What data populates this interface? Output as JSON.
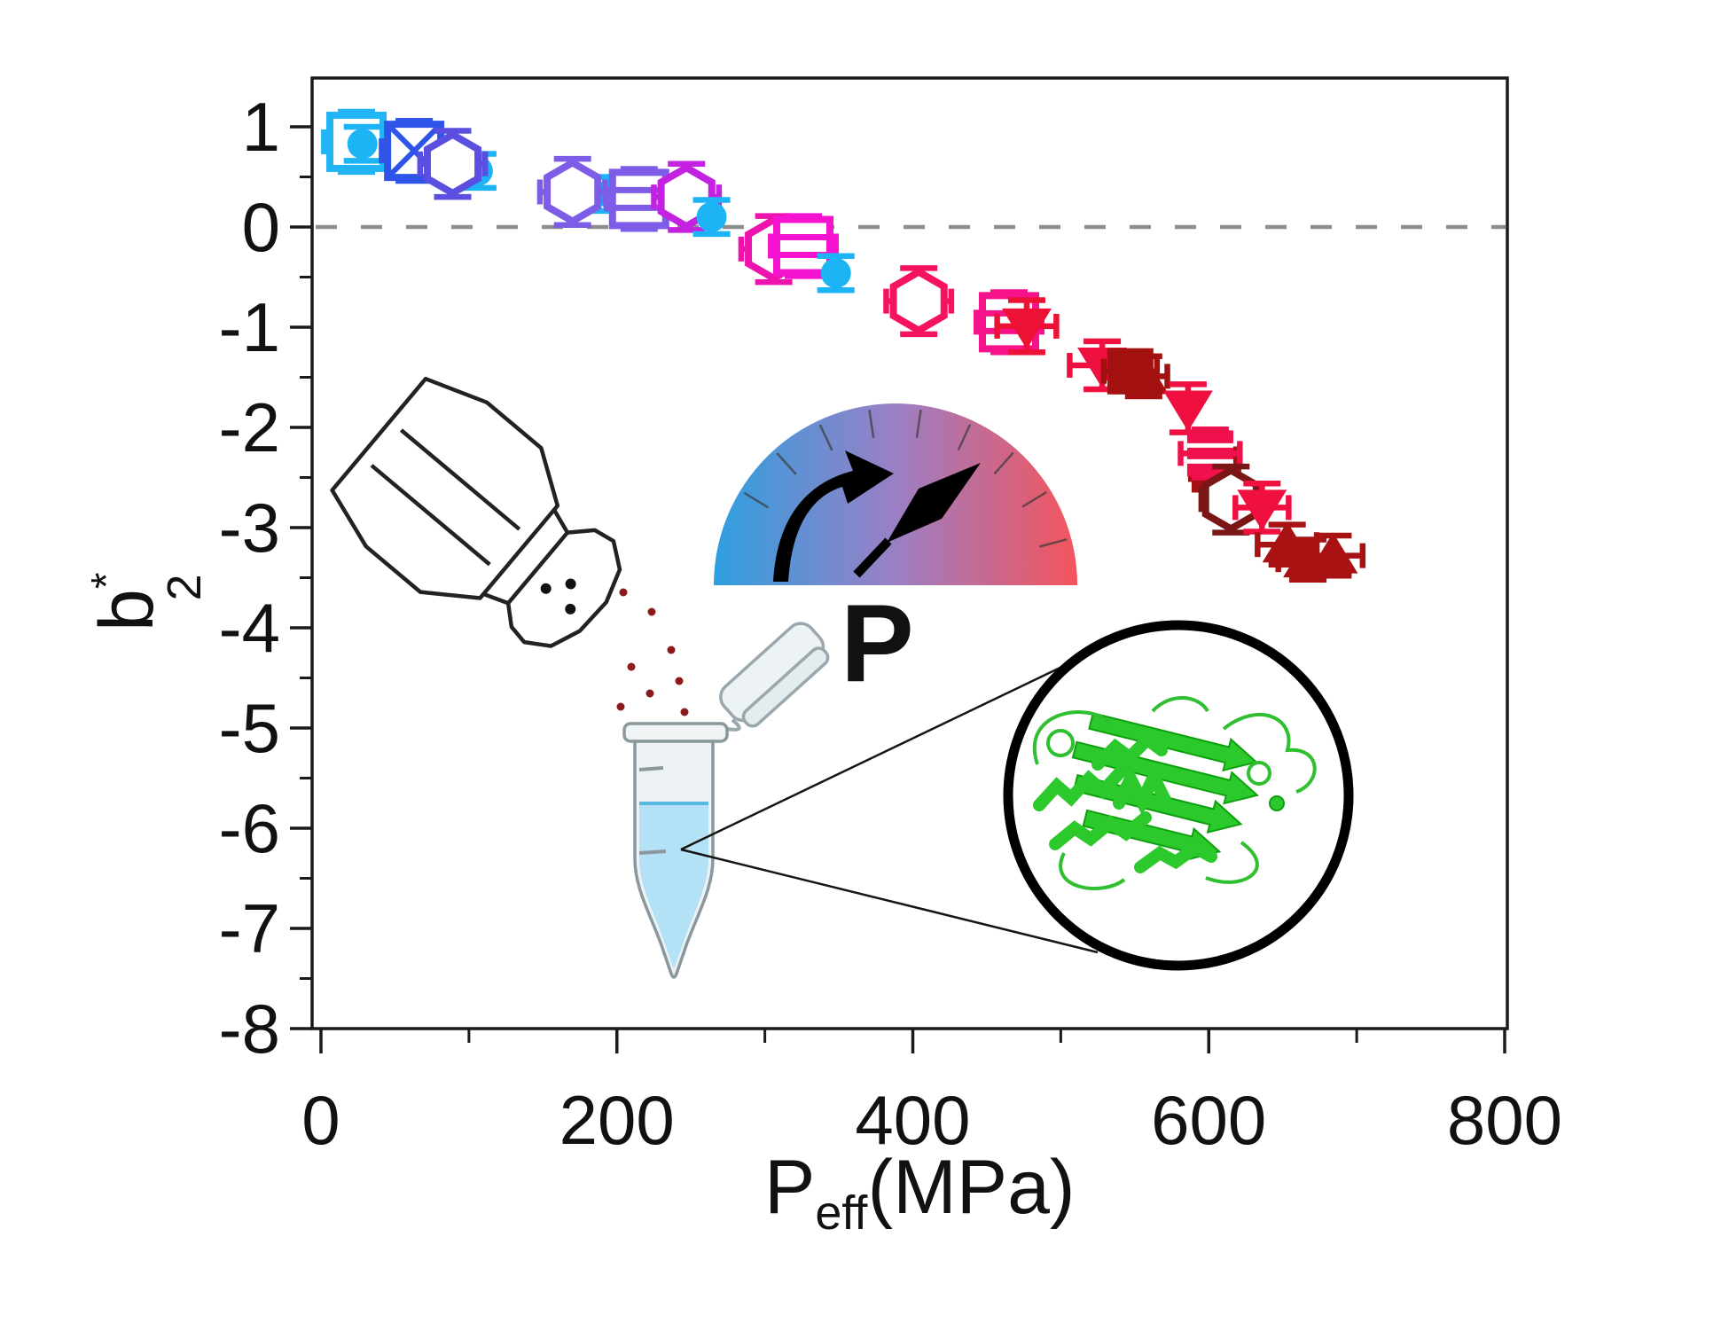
{
  "figure": {
    "gauge": {
      "label": "P"
    },
    "x_axis": {
      "title_main": "P",
      "title_sub": "eff",
      "title_unit": "(MPa)",
      "tick_labels": [
        "0",
        "200",
        "400",
        "600",
        "800"
      ],
      "tick_values": [
        0,
        200,
        400,
        600,
        800
      ],
      "minor_tick_values": [
        100,
        300,
        500,
        700
      ]
    },
    "y_axis": {
      "title_main": "b",
      "title_sup": "*",
      "title_sub": "2",
      "tick_labels": [
        "1",
        "0",
        "-1",
        "-2",
        "-3",
        "-4",
        "-5",
        "-6",
        "-7",
        "-8"
      ],
      "tick_values": [
        1,
        0,
        -1,
        -2,
        -3,
        -4,
        -5,
        -6,
        -7,
        -8
      ],
      "minor_tick_values": [
        0.5,
        -0.5,
        -1.5,
        -2.5,
        -3.5,
        -4.5,
        -5.5,
        -6.5,
        -7.5
      ]
    },
    "colors": {
      "frame": "#1a1a1a",
      "dashed_line": "#8c8c8c",
      "gauge_gradient": [
        "#2e9fe0",
        "#9b7fc4",
        "#f4545c"
      ],
      "protein_green": "#2bc92b",
      "liquid_blue": "#b3e1f5",
      "salt_dots": "#8b1a1a"
    }
  },
  "chart_data": {
    "type": "scatter",
    "title": "",
    "xlabel": "P_eff (MPa)",
    "ylabel": "b_2*",
    "xlim": [
      0,
      800
    ],
    "ylim": [
      -8,
      1.5
    ],
    "grid": false,
    "zero_line_y": 0,
    "marker_note": "marker color encodes pressure from blue (low) to dark red (high); cyan filled circles, open/striped squares, open hexagons, filled triangles",
    "points": [
      {
        "x": 24,
        "y": 0.85,
        "marker": "square-open",
        "color": "#22b4f5",
        "xerr": 22,
        "yerr": 0.3
      },
      {
        "x": 28,
        "y": 0.83,
        "marker": "circle",
        "color": "#1cb4f4",
        "yerr": 0.17
      },
      {
        "x": 63,
        "y": 0.76,
        "marker": "square-crossed",
        "color": "#2f55e8",
        "xerr": 22,
        "yerr": 0.3
      },
      {
        "x": 106,
        "y": 0.56,
        "marker": "circle",
        "color": "#1cb4f4",
        "yerr": 0.17
      },
      {
        "x": 89,
        "y": 0.63,
        "marker": "hexagon",
        "color": "#5a4fe0",
        "xerr": 22,
        "yerr": 0.33
      },
      {
        "x": 196,
        "y": 0.33,
        "marker": "circle",
        "color": "#1cb4f4",
        "yerr": 0.17
      },
      {
        "x": 170,
        "y": 0.35,
        "marker": "hexagon",
        "color": "#7d5ce8",
        "xerr": 22,
        "yerr": 0.33
      },
      {
        "x": 215,
        "y": 0.28,
        "marker": "square-striped",
        "color": "#7d5ce8",
        "xerr": 22,
        "yerr": 0.3
      },
      {
        "x": 247,
        "y": 0.3,
        "marker": "hexagon",
        "color": "#c322e0",
        "xerr": 22,
        "yerr": 0.33
      },
      {
        "x": 264,
        "y": 0.1,
        "marker": "circle",
        "color": "#1cb4f4",
        "yerr": 0.17
      },
      {
        "x": 306,
        "y": -0.22,
        "marker": "hexagon",
        "color": "#ef13ae",
        "xerr": 22,
        "yerr": 0.33
      },
      {
        "x": 326,
        "y": -0.19,
        "marker": "square-striped",
        "color": "#f513d0",
        "xerr": 22,
        "yerr": 0.3
      },
      {
        "x": 348,
        "y": -0.46,
        "marker": "circle",
        "color": "#1cb4f4",
        "yerr": 0.17
      },
      {
        "x": 404,
        "y": -0.74,
        "marker": "hexagon",
        "color": "#f5135f",
        "xerr": 22,
        "yerr": 0.33
      },
      {
        "x": 465,
        "y": -0.95,
        "marker": "square-striped",
        "color": "#f6128b",
        "xerr": 22,
        "yerr": 0.3
      },
      {
        "x": 477,
        "y": -0.99,
        "marker": "triangle-down",
        "color": "#ee1136",
        "xerr": 20,
        "yerr": 0.26
      },
      {
        "x": 528,
        "y": -1.38,
        "marker": "triangle-down",
        "color": "#f01040",
        "xerr": 22,
        "yerr": 0.24
      },
      {
        "x": 547,
        "y": -1.44,
        "marker": "square-filled",
        "color": "#a31111",
        "xerr": 18,
        "yerr": 0.2
      },
      {
        "x": 556,
        "y": -1.49,
        "marker": "triangle-up",
        "color": "#a31111",
        "xerr": 16,
        "yerr": 0.2
      },
      {
        "x": 586,
        "y": -1.81,
        "marker": "triangle-down",
        "color": "#f01040",
        "yerr": 0.24
      },
      {
        "x": 604,
        "y": -2.42,
        "marker": "square-filled",
        "color": "#a31111",
        "xerr": 16,
        "yerr": 0.2
      },
      {
        "x": 601,
        "y": -2.26,
        "marker": "square-striped-filled",
        "color": "#f0104c",
        "xerr": 20,
        "yerr": 0.24
      },
      {
        "x": 615,
        "y": -2.72,
        "marker": "hexagon",
        "color": "#7a1616",
        "xerr": 20,
        "yerr": 0.33
      },
      {
        "x": 636,
        "y": -2.8,
        "marker": "triangle-down",
        "color": "#f01040",
        "xerr": 18,
        "yerr": 0.24
      },
      {
        "x": 653,
        "y": -3.17,
        "marker": "triangle-up",
        "color": "#a81212",
        "xerr": 20,
        "yerr": 0.2
      },
      {
        "x": 667,
        "y": -3.32,
        "marker": "triangle-up",
        "color": "#a81212",
        "xerr": 20,
        "yerr": 0.2
      },
      {
        "x": 684,
        "y": -3.28,
        "marker": "triangle-up",
        "color": "#a81212",
        "xerr": 20,
        "yerr": 0.2
      }
    ]
  }
}
